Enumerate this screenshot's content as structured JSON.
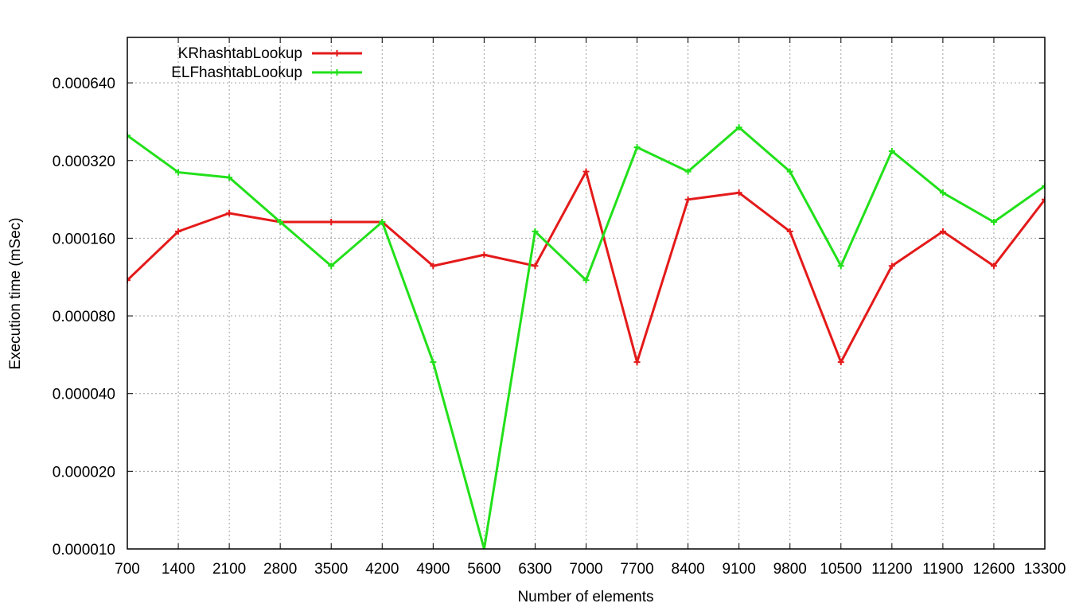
{
  "chart_data": {
    "type": "line",
    "xlabel": "Number of elements",
    "ylabel": "Execution time (mSec)",
    "x_scale": "category",
    "y_scale": "log2",
    "ylim": [
      1e-05,
      0.00096
    ],
    "grid": true,
    "legend_position": "top-left",
    "x": [
      700,
      1400,
      2100,
      2800,
      3500,
      4200,
      4900,
      5600,
      6300,
      7000,
      7700,
      8400,
      9100,
      9800,
      10500,
      11200,
      11900,
      12600,
      13300
    ],
    "x_tick_labels": [
      "700",
      "1400",
      "2100",
      "2800",
      "3500",
      "4200",
      "4900",
      "5600",
      "6300",
      "7000",
      "7700",
      "8400",
      "9100",
      "9800",
      "10500",
      "11200",
      "11900",
      "12600",
      "13300"
    ],
    "y_ticks": [
      1e-05,
      2e-05,
      4e-05,
      8e-05,
      0.00016,
      0.00032,
      0.00064
    ],
    "y_tick_labels": [
      "0.000010",
      "0.000020",
      "0.000040",
      "0.000080",
      "0.000160",
      "0.000320",
      "0.000640"
    ],
    "series": [
      {
        "name": "KRhashtabLookup",
        "color": "#e41a1a",
        "values": [
          0.00011,
          0.00017,
          0.0002,
          0.000185,
          0.000185,
          0.000185,
          0.000125,
          0.000138,
          0.000125,
          0.00029,
          5.3e-05,
          0.000226,
          0.00024,
          0.00017,
          5.3e-05,
          0.000125,
          0.00017,
          0.000125,
          0.000226
        ]
      },
      {
        "name": "ELFhashtabLookup",
        "color": "#22e01a",
        "values": [
          0.0004,
          0.000288,
          0.000275,
          0.000185,
          0.000125,
          0.000185,
          5.3e-05,
          1e-05,
          0.00017,
          0.00011,
          0.00036,
          0.00029,
          0.00043,
          0.00029,
          0.000125,
          0.000348,
          0.00024,
          0.000185,
          0.000255
        ]
      }
    ]
  }
}
